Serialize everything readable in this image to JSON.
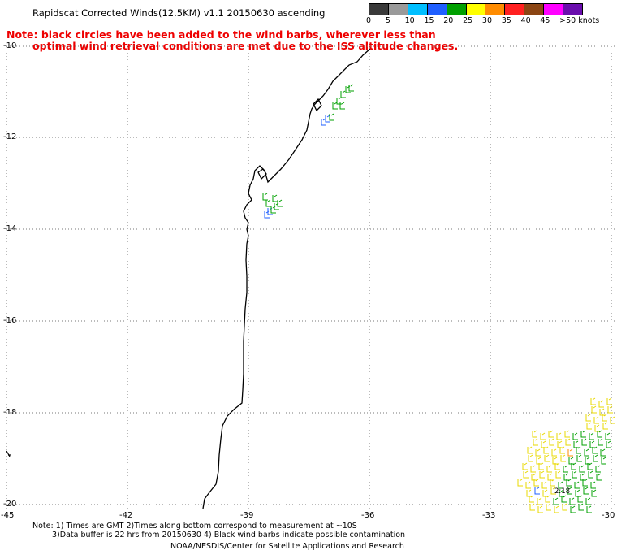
{
  "title": "Rapidscat Corrected Winds(12.5KM) v1.1 20150630 ascending",
  "note": {
    "line1": "Note: black circles have been added to the wind barbs, wherever less than",
    "line2": "optimal wind retrieval conditions are met due to the ISS altitude changes."
  },
  "legend": {
    "labels": [
      "0",
      "5",
      "10",
      "15",
      "20",
      "25",
      "30",
      "35",
      "40",
      "45",
      ">50 knots"
    ],
    "colors": [
      "#3a3a3a",
      "#9a9a9a",
      "#00bfff",
      "#1f5fff",
      "#00a000",
      "#ffff00",
      "#ff8c00",
      "#ff2020",
      "#8b4513",
      "#ff00ff",
      "#6a0dad"
    ]
  },
  "axes": {
    "lat_labels": [
      "-10",
      "-12",
      "-14",
      "-16",
      "-18",
      "-20"
    ],
    "lon_labels": [
      "-45",
      "-42",
      "-39",
      "-36",
      "-33",
      "-30"
    ]
  },
  "footer": {
    "line1": "Note: 1) Times are GMT 2)Times along bottom correspond to measurement at ~10S",
    "line2": "3)Data buffer is 22 hrs from 20150630 4) Black wind barbs indicate possible contamination",
    "credit": "NOAA/NESDIS/Center for Satellite Applications and Research"
  },
  "time_label": "2:18"
}
